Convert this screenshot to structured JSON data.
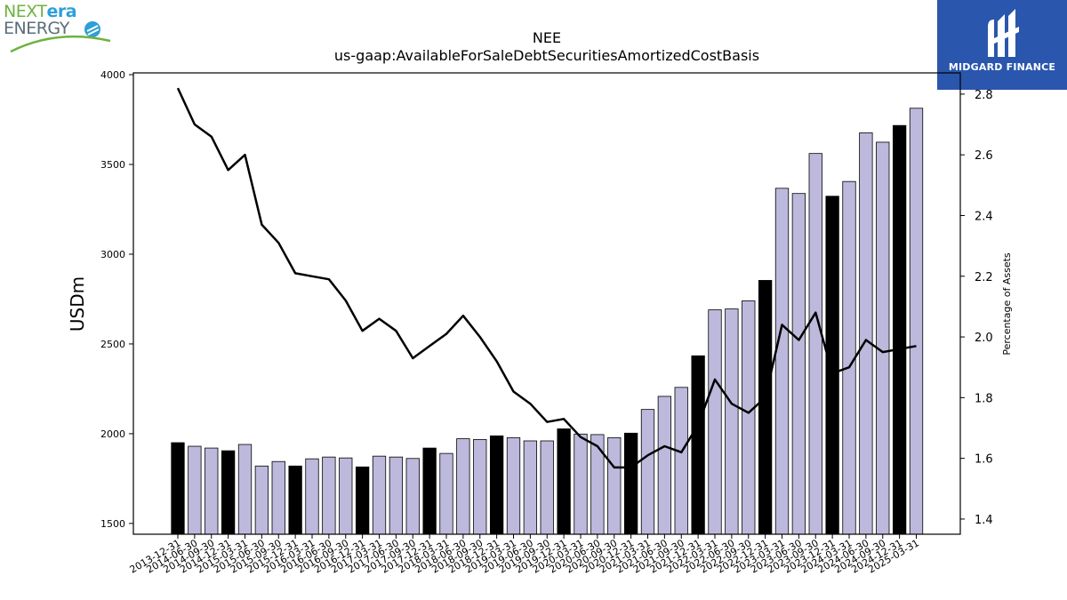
{
  "branding": {
    "left_logo": {
      "part1": "NEXT",
      "part2": "era",
      "line2": "ENERGY",
      "colors": {
        "next": "#6db33f",
        "era": "#2e9fd8",
        "energy": "#5c6d7a"
      }
    },
    "right_logo": {
      "text": "MIDGARD FINANCE",
      "background": "#2a56ad"
    }
  },
  "chart_data": {
    "type": "bar",
    "title": "NEE",
    "subtitle": "us-gaap:AvailableForSaleDebtSecuritiesAmortizedCostBasis",
    "ylabel": "USDm",
    "y2label": "Percentage of Assets",
    "ylim": [
      1440,
      4010
    ],
    "y2lim": [
      1.35,
      2.87
    ],
    "yticks": [
      1500,
      2000,
      2500,
      3000,
      3500,
      4000
    ],
    "y2ticks": [
      1.4,
      1.6,
      1.8,
      2.0,
      2.2,
      2.4,
      2.6,
      2.8
    ],
    "colors": {
      "bar_default": "#bdb9dc",
      "bar_highlight": "#000000",
      "line": "#000000"
    },
    "categories": [
      "2013-12-31",
      "2014-06-30",
      "2014-09-30",
      "2014-12-31",
      "2015-03-31",
      "2015-06-30",
      "2015-09-30",
      "2015-12-31",
      "2016-03-31",
      "2016-06-30",
      "2016-09-30",
      "2016-12-31",
      "2017-03-31",
      "2017-06-30",
      "2017-09-30",
      "2017-12-31",
      "2018-03-31",
      "2018-06-30",
      "2018-09-30",
      "2018-12-31",
      "2019-03-31",
      "2019-06-30",
      "2019-09-30",
      "2019-12-31",
      "2020-03-31",
      "2020-06-30",
      "2020-09-30",
      "2020-12-31",
      "2021-03-31",
      "2021-06-30",
      "2021-09-30",
      "2021-12-31",
      "2022-03-31",
      "2022-06-30",
      "2022-09-30",
      "2022-12-31",
      "2023-03-31",
      "2023-06-30",
      "2023-09-30",
      "2023-12-31",
      "2024-03-31",
      "2024-06-30",
      "2024-09-30",
      "2024-12-31",
      "2025-03-31"
    ],
    "series": [
      {
        "name": "",
        "kind": "bar",
        "axis": "left",
        "values": [
          1950,
          1930,
          1920,
          1905,
          1940,
          1820,
          1845,
          1820,
          1860,
          1870,
          1865,
          1815,
          1875,
          1870,
          1862,
          1920,
          1890,
          1972,
          1968,
          1988,
          1978,
          1960,
          1960,
          2027,
          1998,
          1995,
          1978,
          2003,
          2135,
          2208,
          2258,
          2434,
          2690,
          2695,
          2740,
          2854,
          3367,
          3338,
          3561,
          3323,
          3405,
          3676,
          3624,
          3717,
          3813
        ],
        "highlight": [
          true,
          false,
          false,
          true,
          false,
          false,
          false,
          true,
          false,
          false,
          false,
          true,
          false,
          false,
          false,
          true,
          false,
          false,
          false,
          true,
          false,
          false,
          false,
          true,
          false,
          false,
          false,
          true,
          false,
          false,
          false,
          true,
          false,
          false,
          false,
          true,
          false,
          false,
          false,
          true,
          false,
          false,
          false,
          true,
          false
        ]
      },
      {
        "name": "",
        "kind": "line",
        "axis": "right",
        "values": [
          2.82,
          2.7,
          2.66,
          2.55,
          2.6,
          2.37,
          2.31,
          2.21,
          2.2,
          2.19,
          2.12,
          2.02,
          2.06,
          2.02,
          1.93,
          1.97,
          2.01,
          2.07,
          2.0,
          1.92,
          1.82,
          1.78,
          1.72,
          1.73,
          1.67,
          1.64,
          1.57,
          1.57,
          1.61,
          1.64,
          1.62,
          1.71,
          1.86,
          1.78,
          1.75,
          1.8,
          2.04,
          1.99,
          2.08,
          1.88,
          1.9,
          1.99,
          1.95,
          1.96,
          1.97
        ]
      }
    ],
    "grid": false,
    "legend": "none"
  }
}
